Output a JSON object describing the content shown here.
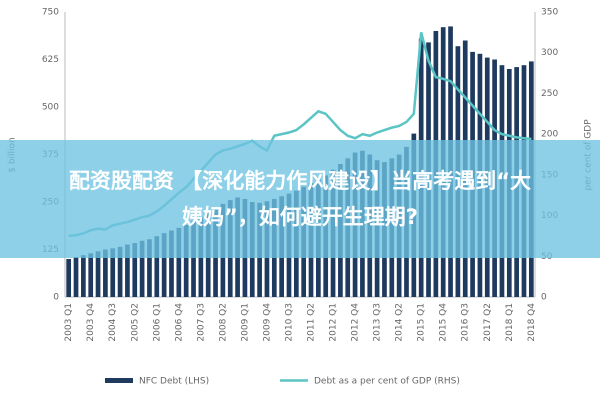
{
  "chart_data": {
    "type": "bar_line",
    "categories": [
      "2003 Q1",
      null,
      null,
      "2003 Q4",
      null,
      null,
      "2004 Q3",
      null,
      null,
      "2005 Q2",
      null,
      null,
      "2006 Q1",
      null,
      null,
      "2006 Q4",
      null,
      null,
      "2007 Q3",
      null,
      null,
      "2008 Q2",
      null,
      null,
      "2009 Q1",
      null,
      null,
      "2009 Q4",
      null,
      null,
      "2010 Q3",
      null,
      null,
      "2011 Q2",
      null,
      null,
      "2012 Q1",
      null,
      null,
      "2012 Q4",
      null,
      null,
      "2013 Q3",
      null,
      null,
      "2014 Q2",
      null,
      null,
      "2015 Q1",
      null,
      null,
      "2015 Q4",
      null,
      null,
      "2016 Q3",
      null,
      null,
      "2017 Q2",
      null,
      null,
      "2018 Q1",
      null,
      null,
      "2018 Q4"
    ],
    "series": [
      {
        "name": "NFC Debt (LHS)",
        "color": "#1f3a5f",
        "kind": "bar",
        "values": [
          100,
          105,
          110,
          115,
          120,
          125,
          128,
          132,
          138,
          142,
          148,
          152,
          160,
          168,
          175,
          182,
          190,
          200,
          210,
          220,
          230,
          245,
          255,
          262,
          258,
          250,
          248,
          252,
          258,
          265,
          272,
          280,
          290,
          300,
          310,
          320,
          335,
          350,
          365,
          380,
          385,
          375,
          360,
          355,
          365,
          375,
          395,
          430,
          680,
          670,
          700,
          710,
          712,
          660,
          675,
          645,
          640,
          630,
          625,
          610,
          600,
          605,
          610,
          620
        ]
      },
      {
        "name": "Debt as a per cent of GDP (RHS)",
        "color": "#5bc4c4",
        "kind": "line",
        "axis": "y2",
        "values": [
          75,
          76,
          78,
          82,
          84,
          83,
          88,
          90,
          92,
          95,
          98,
          100,
          105,
          112,
          120,
          128,
          135,
          145,
          155,
          165,
          175,
          180,
          182,
          185,
          188,
          192,
          185,
          180,
          198,
          200,
          202,
          205,
          212,
          220,
          228,
          225,
          215,
          205,
          198,
          195,
          200,
          198,
          202,
          205,
          208,
          210,
          215,
          225,
          325,
          290,
          270,
          268,
          265,
          255,
          245,
          235,
          225,
          215,
          205,
          200,
          198,
          196,
          195,
          194
        ]
      }
    ],
    "ylabel": "$ billion",
    "y2label": "per cent of GDP",
    "ylim": [
      0,
      750
    ],
    "yticks": [
      0,
      125,
      250,
      375,
      500,
      625,
      750
    ],
    "y2lim": [
      0,
      350
    ],
    "y2ticks": [
      0,
      50,
      100,
      150,
      200,
      250,
      300,
      350
    ]
  },
  "overlay": {
    "lines": [
      "配资股配资 【深化能力作风建设】当高考遇到“大",
      "姨妈”，如何避开生理期?"
    ]
  }
}
